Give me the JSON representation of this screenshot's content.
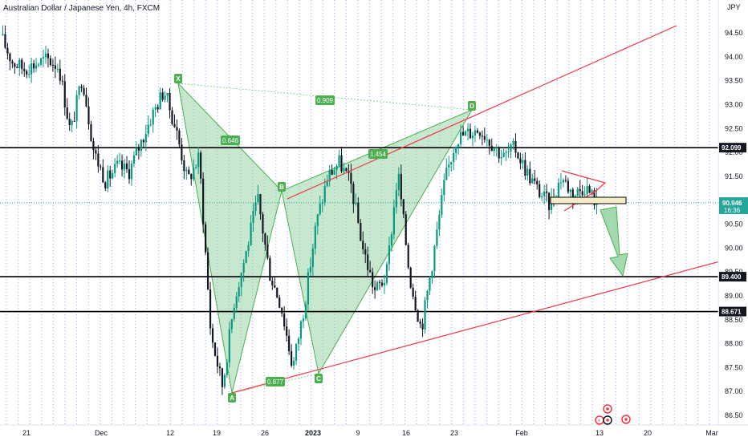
{
  "title": "Australian Dollar / Japanese Yen, 4h, FXCM",
  "currency": "JPY",
  "chart_data": {
    "type": "candlestick",
    "symbol": "Australian Dollar / Japanese Yen",
    "interval": "4h",
    "source": "FXCM",
    "ylim": [
      86.4,
      95.1
    ],
    "y_ticks": [
      "94.50",
      "94.00",
      "93.50",
      "93.00",
      "92.50",
      "92.00",
      "91.50",
      "91.00",
      "90.50",
      "90.00",
      "89.50",
      "89.00",
      "88.50",
      "88.00",
      "87.50",
      "87.00",
      "86.50"
    ],
    "x_ticks": [
      {
        "label": "21",
        "bold": false
      },
      {
        "label": "Dec",
        "bold": false
      },
      {
        "label": "12",
        "bold": false
      },
      {
        "label": "19",
        "bold": false
      },
      {
        "label": "26",
        "bold": false
      },
      {
        "label": "2023",
        "bold": true
      },
      {
        "label": "9",
        "bold": false
      },
      {
        "label": "16",
        "bold": false
      },
      {
        "label": "23",
        "bold": false
      },
      {
        "label": "Feb",
        "bold": false
      },
      {
        "label": "13",
        "bold": false
      },
      {
        "label": "20",
        "bold": false
      },
      {
        "label": "Mar",
        "bold": false
      }
    ],
    "price_path": [
      {
        "t": 0,
        "p": 94.45
      },
      {
        "t": 1,
        "p": 93.9
      },
      {
        "t": 2,
        "p": 93.75
      },
      {
        "t": 3,
        "p": 93.85
      },
      {
        "t": 4,
        "p": 93.95
      },
      {
        "t": 5,
        "p": 93.8
      },
      {
        "t": 6,
        "p": 92.4
      },
      {
        "t": 7,
        "p": 93.6
      },
      {
        "t": 8,
        "p": 92.0
      },
      {
        "t": 9,
        "p": 91.4
      },
      {
        "t": 10,
        "p": 91.7
      },
      {
        "t": 11,
        "p": 91.6
      },
      {
        "t": 12,
        "p": 92.2
      },
      {
        "t": 13,
        "p": 92.8
      },
      {
        "t": 14,
        "p": 93.3
      },
      {
        "t": 15,
        "p": 92.5
      },
      {
        "t": 16,
        "p": 91.4
      },
      {
        "t": 17,
        "p": 91.9
      },
      {
        "t": 18,
        "p": 88.2
      },
      {
        "t": 19,
        "p": 87.1
      },
      {
        "t": 20,
        "p": 88.9
      },
      {
        "t": 21,
        "p": 89.9
      },
      {
        "t": 22,
        "p": 91.05
      },
      {
        "t": 23,
        "p": 89.5
      },
      {
        "t": 24,
        "p": 88.8
      },
      {
        "t": 25,
        "p": 87.5
      },
      {
        "t": 26,
        "p": 88.8
      },
      {
        "t": 27,
        "p": 90.5
      },
      {
        "t": 28,
        "p": 91.5
      },
      {
        "t": 29,
        "p": 91.8
      },
      {
        "t": 30,
        "p": 91.3
      },
      {
        "t": 31,
        "p": 90.0
      },
      {
        "t": 32,
        "p": 89.1
      },
      {
        "t": 33,
        "p": 89.4
      },
      {
        "t": 34,
        "p": 91.6
      },
      {
        "t": 35,
        "p": 89.4
      },
      {
        "t": 36,
        "p": 88.3
      },
      {
        "t": 37,
        "p": 89.8
      },
      {
        "t": 38,
        "p": 91.4
      },
      {
        "t": 39,
        "p": 92.3
      },
      {
        "t": 40,
        "p": 92.4
      },
      {
        "t": 41,
        "p": 92.5
      },
      {
        "t": 42,
        "p": 92.2
      },
      {
        "t": 43,
        "p": 91.9
      },
      {
        "t": 44,
        "p": 92.1
      },
      {
        "t": 45,
        "p": 91.6
      },
      {
        "t": 46,
        "p": 91.2
      },
      {
        "t": 47,
        "p": 90.9
      },
      {
        "t": 48,
        "p": 91.5
      },
      {
        "t": 49,
        "p": 91.1
      },
      {
        "t": 50,
        "p": 91.3
      },
      {
        "t": 51,
        "p": 90.95
      }
    ],
    "horizontal_levels": [
      92.099,
      89.4,
      88.671
    ],
    "current_price": {
      "value": "90.946",
      "countdown": "16:36"
    },
    "harmonic_points": [
      {
        "label": "X",
        "value": 93.45
      },
      {
        "label": "A",
        "value": 87.0
      },
      {
        "label": "B",
        "value": 90.9
      },
      {
        "label": "C",
        "value": 87.45
      },
      {
        "label": "D",
        "value": 92.8
      }
    ],
    "ratios": [
      "0.909",
      "0.646",
      "1.454",
      "0.877"
    ]
  },
  "colors": {
    "candle_up": "#089981",
    "candle_down": "#131722",
    "pattern_fill": "#8fd19e",
    "pattern_stroke": "#4caf50",
    "trend_line": "#f23645",
    "level_line": "#000000",
    "grid_dotted": "#2962ff",
    "price_line": "#26a69a",
    "tag_green": "#4caf50"
  }
}
